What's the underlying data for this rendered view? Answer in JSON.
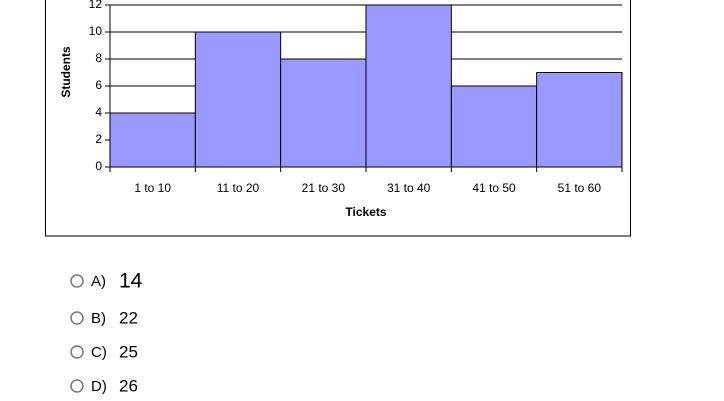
{
  "chart_data": {
    "type": "bar",
    "categories": [
      "1 to 10",
      "11 to 20",
      "21 to 30",
      "31 to 40",
      "41 to 50",
      "51 to 60"
    ],
    "values": [
      4,
      10,
      8,
      12,
      6,
      7
    ],
    "color": "#9999ff",
    "ylim": [
      0,
      12
    ],
    "yticks": [
      0,
      2,
      4,
      6,
      8,
      10,
      12
    ],
    "grid": true,
    "x_label": "Tickets",
    "y_label": "Students"
  },
  "options": [
    {
      "letter": "A)",
      "text": "14"
    },
    {
      "letter": "B)",
      "text": "22"
    },
    {
      "letter": "C)",
      "text": "25"
    },
    {
      "letter": "D)",
      "text": "26"
    }
  ]
}
